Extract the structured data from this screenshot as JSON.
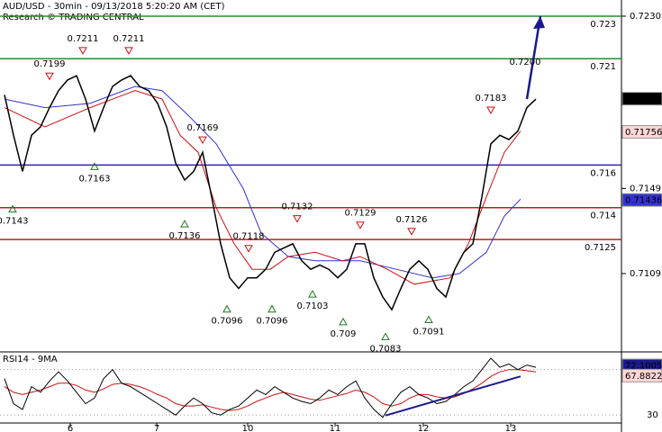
{
  "chart_data": {
    "type": "line",
    "title": "AUD/USD - 30min - 09/13/2018 5:20:20 AM (CET)",
    "subtitle": "Research © TRADING CENTRAL",
    "x": [
      0,
      1,
      2,
      3,
      4,
      5,
      6,
      7,
      8,
      9,
      10,
      11,
      12,
      13,
      14,
      15,
      16,
      17,
      18,
      19,
      20,
      21,
      22,
      23,
      24,
      25,
      26,
      27,
      28,
      29,
      30,
      31,
      32,
      33,
      34,
      35,
      36,
      37,
      38,
      39,
      40,
      41,
      42,
      43,
      44,
      45,
      46,
      47,
      48,
      49,
      50,
      51,
      52,
      53,
      54,
      55,
      56,
      57,
      58,
      59
    ],
    "xlim": [
      -0.5,
      68.5
    ],
    "xticks": [
      {
        "value": 7.3,
        "label": "6"
      },
      {
        "value": 16.9,
        "label": "7"
      },
      {
        "value": 27,
        "label": "10"
      },
      {
        "value": 36.7,
        "label": "11"
      },
      {
        "value": 46.5,
        "label": "12"
      },
      {
        "value": 56.2,
        "label": "13"
      }
    ],
    "ylim": [
      0.70726,
      0.72376
    ],
    "yticks": [
      {
        "value": 0.723,
        "label": "0.7230"
      },
      0.7149,
      0.7109
    ],
    "price": {
      "color": "#000000",
      "values": [
        0.7193,
        0.7174,
        0.7157,
        0.7174,
        0.7178,
        0.7187,
        0.7195,
        0.72,
        0.7202,
        0.7191,
        0.7176,
        0.7187,
        0.7197,
        0.72,
        0.7202,
        0.7197,
        0.7195,
        0.7189,
        0.7178,
        0.7161,
        0.7153,
        0.7157,
        0.7166,
        0.7145,
        0.7123,
        0.7107,
        0.7102,
        0.7107,
        0.7107,
        0.7111,
        0.7119,
        0.7121,
        0.7123,
        0.7115,
        0.7111,
        0.7113,
        0.7111,
        0.7107,
        0.7111,
        0.7123,
        0.7123,
        0.7107,
        0.7098,
        0.7092,
        0.7102,
        0.7111,
        0.7115,
        0.7111,
        0.7102,
        0.7098,
        0.7111,
        0.7119,
        0.7123,
        0.7145,
        0.717,
        0.7174,
        0.7172,
        0.7176,
        0.7187,
        0.7191
      ]
    },
    "ma_fast": {
      "color": "#cc1111",
      "x": [
        0,
        4.5,
        9.5,
        14.5,
        17.5,
        19.5,
        21.5,
        23.5,
        25.5,
        27.5,
        29.5,
        31.5,
        34.5,
        37.5,
        39.5,
        42.5,
        45.5,
        49.5,
        51.5,
        53.5,
        55.5,
        57.3
      ],
      "values": [
        0.7187,
        0.7178,
        0.7187,
        0.7195,
        0.7191,
        0.7174,
        0.7166,
        0.714,
        0.7123,
        0.7111,
        0.7111,
        0.7117,
        0.7119,
        0.7115,
        0.7117,
        0.7111,
        0.7104,
        0.7107,
        0.7123,
        0.7145,
        0.7166,
        0.7176
      ]
    },
    "ma_slow": {
      "color": "#3333cc",
      "x": [
        0,
        4.5,
        9.5,
        14.5,
        17.5,
        20.5,
        23.5,
        26.5,
        28.5,
        31.5,
        34.5,
        39.5,
        43.5,
        47.5,
        50.5,
        53.5,
        55.5,
        57.3
      ],
      "values": [
        0.7191,
        0.7187,
        0.7189,
        0.7197,
        0.7195,
        0.7183,
        0.717,
        0.7149,
        0.7128,
        0.7117,
        0.7115,
        0.7115,
        0.7111,
        0.7107,
        0.7109,
        0.7119,
        0.7136,
        0.7144
      ]
    },
    "forecast": {
      "color": "#1a1a8c",
      "x": [
        58,
        59.5
      ],
      "values": [
        0.7191,
        0.723
      ]
    },
    "levels": [
      {
        "value": 0.723,
        "color": "#2e8b2e"
      },
      {
        "value": 0.721,
        "color": "#2e8b2e"
      },
      {
        "value": 0.716,
        "color": "#3322bb"
      },
      {
        "value": 0.714,
        "color": "#b22222"
      },
      {
        "value": 0.7125,
        "color": "#b22222"
      }
    ],
    "last_values": [
      {
        "value": 0.71912,
        "color": "#000000",
        "text": "#ffffff"
      },
      {
        "value": 0.71756,
        "color": "#ffd6d6",
        "text": "#cc0000"
      },
      {
        "value": 0.71436,
        "color": "#3333cc",
        "text": "#ffffff"
      }
    ],
    "annotations": [
      {
        "x": 5,
        "value": 0.7199,
        "kind": "high"
      },
      {
        "x": 8.7,
        "value": 0.7211,
        "kind": "high"
      },
      {
        "x": 13.8,
        "value": 0.7211,
        "kind": "high"
      },
      {
        "x": 22,
        "value": 0.7169,
        "kind": "high"
      },
      {
        "x": 27.1,
        "value": 0.7118,
        "kind": "high"
      },
      {
        "x": 32.5,
        "value": 0.7132,
        "kind": "high"
      },
      {
        "x": 39.5,
        "value": 0.7129,
        "kind": "high"
      },
      {
        "x": 45.2,
        "value": 0.7126,
        "kind": "high"
      },
      {
        "x": 54,
        "value": 0.7183,
        "kind": "high"
      },
      {
        "x": 57.8,
        "value": 0.72,
        "label": "0.7200",
        "kind": "target"
      },
      {
        "x": 0.9,
        "value": 0.7143,
        "kind": "low"
      },
      {
        "x": 10,
        "value": 0.7163,
        "kind": "low"
      },
      {
        "x": 20,
        "value": 0.7136,
        "kind": "low"
      },
      {
        "x": 24.7,
        "value": 0.7096,
        "kind": "low"
      },
      {
        "x": 29.7,
        "value": 0.7096,
        "kind": "low"
      },
      {
        "x": 34.2,
        "value": 0.7103,
        "kind": "low"
      },
      {
        "x": 37.6,
        "value": 0.709,
        "kind": "low"
      },
      {
        "x": 42.3,
        "value": 0.7083,
        "kind": "low"
      },
      {
        "x": 47.1,
        "value": 0.7091,
        "kind": "low"
      }
    ],
    "rsi": {
      "title": "RSI14 - 9MA",
      "ylim": [
        23,
        84
      ],
      "yticks": [
        30,
        70
      ],
      "color": "#000000",
      "ma_color": "#cc1111",
      "values": [
        62,
        40,
        35,
        55,
        50,
        60,
        68,
        60,
        50,
        40,
        45,
        62,
        70,
        58,
        55,
        50,
        45,
        40,
        35,
        30,
        38,
        45,
        40,
        32,
        30,
        35,
        38,
        45,
        52,
        48,
        55,
        50,
        45,
        42,
        40,
        45,
        52,
        48,
        55,
        60,
        45,
        35,
        28,
        40,
        50,
        55,
        48,
        45,
        40,
        42,
        48,
        55,
        60,
        70,
        80,
        72,
        75,
        70,
        74,
        72
      ],
      "ma_values": [
        55,
        50,
        48,
        50,
        52,
        55,
        58,
        58,
        56,
        52,
        50,
        53,
        57,
        58,
        57,
        55,
        52,
        48,
        45,
        40,
        38,
        38,
        39,
        37,
        35,
        34,
        35,
        38,
        42,
        45,
        48,
        50,
        48,
        46,
        44,
        43,
        45,
        47,
        49,
        52,
        50,
        46,
        40,
        38,
        40,
        45,
        48,
        48,
        46,
        45,
        46,
        49,
        53,
        58,
        64,
        68,
        70,
        70,
        69,
        68
      ],
      "trendline": {
        "color": "#1a1a8c",
        "x": [
          42.3,
          57.3
        ],
        "values": [
          29.6,
          64
        ]
      },
      "last_values": [
        {
          "value": 72.1005,
          "color": "#1a1a8c",
          "text": "#ffffff"
        },
        {
          "value": 67.8822,
          "color": "#ffd6d6",
          "text": "#cc0000"
        }
      ]
    }
  }
}
